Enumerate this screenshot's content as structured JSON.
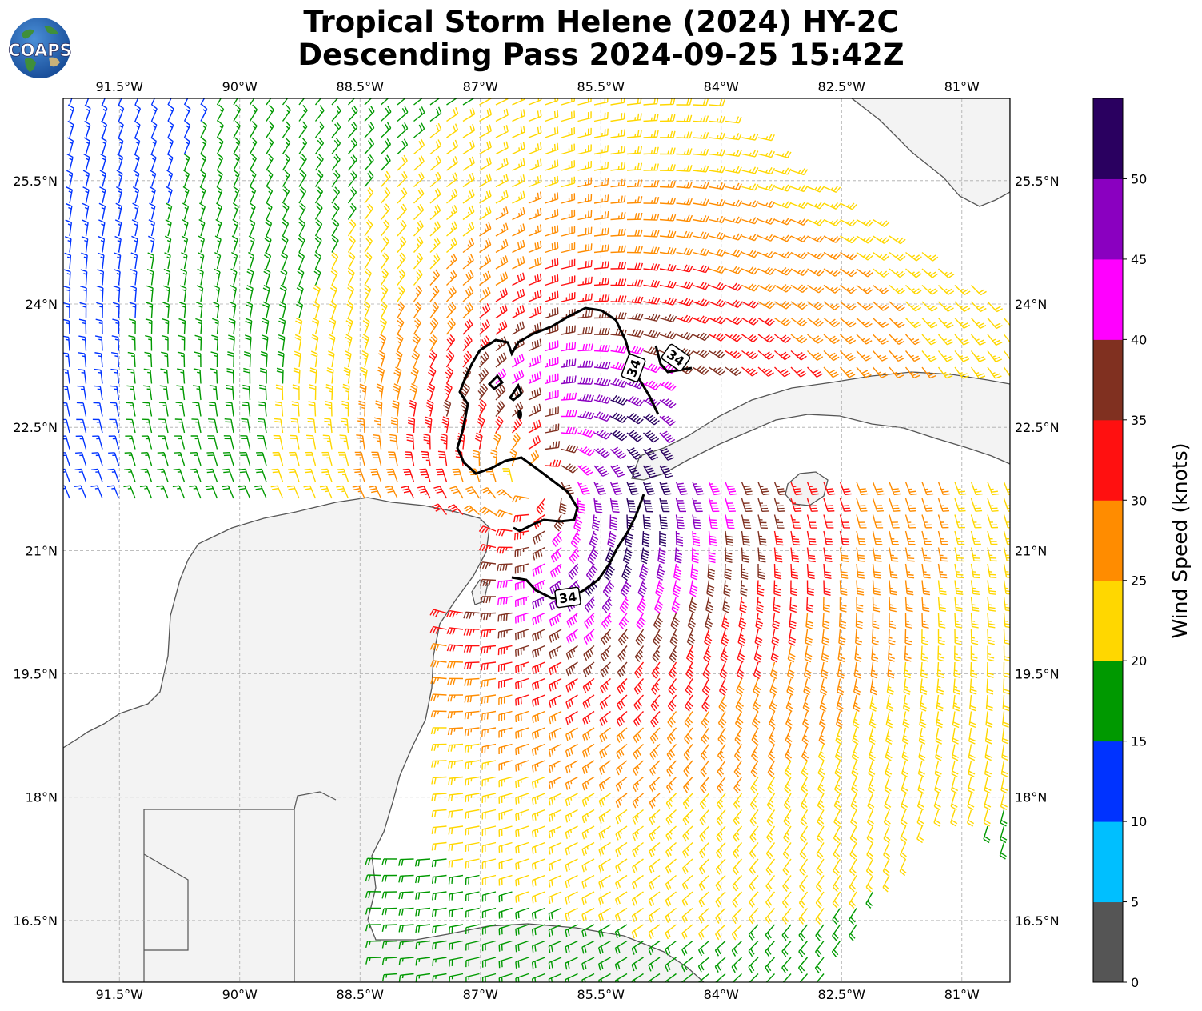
{
  "header": {
    "title_line1": "Tropical Storm Helene (2024) HY-2C",
    "title_line2": "Descending Pass 2024-09-25 15:42Z",
    "logo_text": "COAPS"
  },
  "map": {
    "lon_range": [
      -92.2,
      -80.4
    ],
    "lat_range": [
      15.75,
      26.5
    ],
    "lon_ticks": [
      "91.5°W",
      "90°W",
      "88.5°W",
      "87°W",
      "85.5°W",
      "84°W",
      "82.5°W",
      "81°W"
    ],
    "lon_tick_values": [
      -91.5,
      -90,
      -88.5,
      -87,
      -85.5,
      -84,
      -82.5,
      -81
    ],
    "lat_ticks": [
      "25.5°N",
      "24°N",
      "22.5°N",
      "21°N",
      "19.5°N",
      "18°N",
      "16.5°N"
    ],
    "lat_tick_values": [
      25.5,
      24,
      22.5,
      21,
      19.5,
      18,
      16.5
    ],
    "storm_center": {
      "lon": -86.3,
      "lat": 21.8
    },
    "contour_label": "34",
    "land_color": "#f3f3f3",
    "coast_color": "#555555"
  },
  "colorbar": {
    "label": "Wind Speed (knots)",
    "ticks": [
      "0",
      "5",
      "10",
      "15",
      "20",
      "25",
      "30",
      "35",
      "40",
      "45",
      "50"
    ],
    "colors": [
      "#555555",
      "#00bfff",
      "#0033ff",
      "#009900",
      "#ffd700",
      "#ff8c00",
      "#ff1010",
      "#803020",
      "#ff00ff",
      "#8a00c0",
      "#2a0060"
    ]
  }
}
